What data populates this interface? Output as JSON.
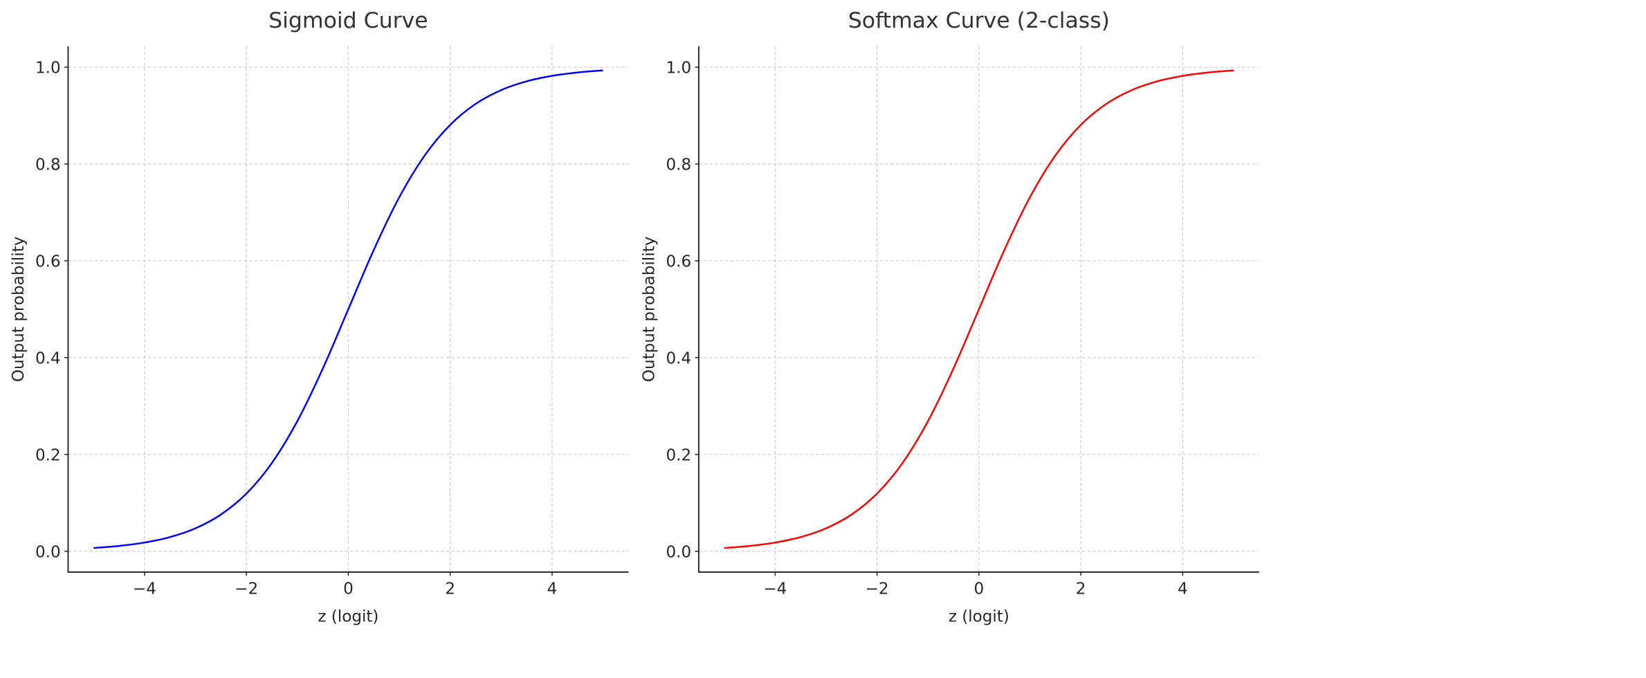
{
  "chart_data": [
    {
      "type": "line",
      "title": "Sigmoid Curve",
      "xlabel": "z (logit)",
      "ylabel": "Output probability",
      "xlim": [
        -5.5,
        5.5
      ],
      "ylim": [
        -0.043,
        1.043
      ],
      "xticks": [
        -4,
        -2,
        0,
        2,
        4
      ],
      "xtick_labels": [
        "−4",
        "−2",
        "0",
        "2",
        "4"
      ],
      "yticks": [
        0.0,
        0.2,
        0.4,
        0.6,
        0.8,
        1.0
      ],
      "ytick_labels": [
        "0.0",
        "0.2",
        "0.4",
        "0.6",
        "0.8",
        "1.0"
      ],
      "grid": true,
      "series": [
        {
          "name": "sigmoid",
          "color": "#0000ff",
          "x": [
            -5,
            -4.5,
            -4,
            -3.5,
            -3,
            -2.5,
            -2,
            -1.5,
            -1,
            -0.5,
            0,
            0.5,
            1,
            1.5,
            2,
            2.5,
            3,
            3.5,
            4,
            4.5,
            5
          ],
          "y": [
            0.0067,
            0.011,
            0.018,
            0.0293,
            0.0474,
            0.0759,
            0.1192,
            0.1824,
            0.2689,
            0.3775,
            0.5,
            0.6225,
            0.7311,
            0.8176,
            0.8808,
            0.9241,
            0.9526,
            0.9707,
            0.982,
            0.989,
            0.9933
          ]
        }
      ]
    },
    {
      "type": "line",
      "title": "Softmax Curve (2-class)",
      "xlabel": "z (logit)",
      "ylabel": "Output probability",
      "xlim": [
        -5.5,
        5.5
      ],
      "ylim": [
        -0.043,
        1.043
      ],
      "xticks": [
        -4,
        -2,
        0,
        2,
        4
      ],
      "xtick_labels": [
        "−4",
        "−2",
        "0",
        "2",
        "4"
      ],
      "yticks": [
        0.0,
        0.2,
        0.4,
        0.6,
        0.8,
        1.0
      ],
      "ytick_labels": [
        "0.0",
        "0.2",
        "0.4",
        "0.6",
        "0.8",
        "1.0"
      ],
      "grid": true,
      "series": [
        {
          "name": "softmax",
          "color": "#ff0000",
          "x": [
            -5,
            -4.5,
            -4,
            -3.5,
            -3,
            -2.5,
            -2,
            -1.5,
            -1,
            -0.5,
            0,
            0.5,
            1,
            1.5,
            2,
            2.5,
            3,
            3.5,
            4,
            4.5,
            5
          ],
          "y": [
            0.0067,
            0.011,
            0.018,
            0.0293,
            0.0474,
            0.0759,
            0.1192,
            0.1824,
            0.2689,
            0.3775,
            0.5,
            0.6225,
            0.7311,
            0.8176,
            0.8808,
            0.9241,
            0.9526,
            0.9707,
            0.982,
            0.989,
            0.9933
          ]
        }
      ]
    }
  ]
}
